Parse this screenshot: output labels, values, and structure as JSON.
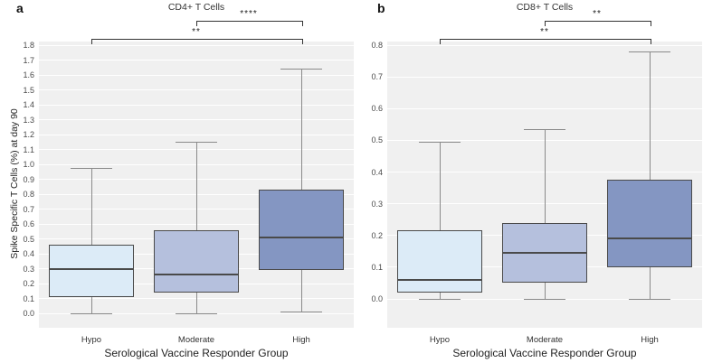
{
  "figure": {
    "background": "#ffffff",
    "y_axis_title": "Spike Specific T Cells (%) at day 90",
    "x_axis_title": "Serological Vaccine Responder Group"
  },
  "style": {
    "panel_bg": "#f0f0f0",
    "grid_color": "#ffffff",
    "box_border": "#4a4a4a",
    "whisker_color": "#8a8a8a",
    "bracket_color": "#333333",
    "text_color": "#333333"
  },
  "chart_data": [
    {
      "type": "box",
      "panel_label": "a",
      "title": "CD4+ T Cells",
      "categories": [
        "Hypo",
        "Moderate",
        "High"
      ],
      "ylabel": "Spike Specific T Cells (%) at day 90",
      "xlabel": "Serological Vaccine Responder Group",
      "ylim": [
        0,
        1.8
      ],
      "ytick_step": 0.1,
      "grid": true,
      "boxes": [
        {
          "category": "Hypo",
          "min": 0.0,
          "q1": 0.11,
          "median": 0.3,
          "q3": 0.46,
          "max": 0.97,
          "fill": "#dcebf7"
        },
        {
          "category": "Moderate",
          "min": 0.0,
          "q1": 0.14,
          "median": 0.26,
          "q3": 0.56,
          "max": 1.15,
          "fill": "#b5c0dd"
        },
        {
          "category": "High",
          "min": 0.01,
          "q1": 0.29,
          "median": 0.51,
          "q3": 0.83,
          "max": 1.64,
          "fill": "#8496c2"
        }
      ],
      "significance": [
        {
          "from": "Hypo",
          "to": "High",
          "label": "**",
          "level": 1
        },
        {
          "from": "Moderate",
          "to": "High",
          "label": "****",
          "level": 2
        }
      ]
    },
    {
      "type": "box",
      "panel_label": "b",
      "title": "CD8+ T Cells",
      "categories": [
        "Hypo",
        "Moderate",
        "High"
      ],
      "ylabel": "",
      "xlabel": "Serological Vaccine Responder Group",
      "ylim": [
        0,
        0.8
      ],
      "ytick_step": 0.1,
      "grid": true,
      "boxes": [
        {
          "category": "Hypo",
          "min": 0.0,
          "q1": 0.02,
          "median": 0.06,
          "q3": 0.215,
          "max": 0.495,
          "fill": "#dcebf7"
        },
        {
          "category": "Moderate",
          "min": 0.0,
          "q1": 0.05,
          "median": 0.145,
          "q3": 0.24,
          "max": 0.535,
          "fill": "#b5c0dd"
        },
        {
          "category": "High",
          "min": 0.0,
          "q1": 0.1,
          "median": 0.19,
          "q3": 0.375,
          "max": 0.78,
          "fill": "#8496c2"
        }
      ],
      "significance": [
        {
          "from": "Hypo",
          "to": "High",
          "label": "**",
          "level": 1
        },
        {
          "from": "Moderate",
          "to": "High",
          "label": "**",
          "level": 2
        }
      ]
    }
  ]
}
